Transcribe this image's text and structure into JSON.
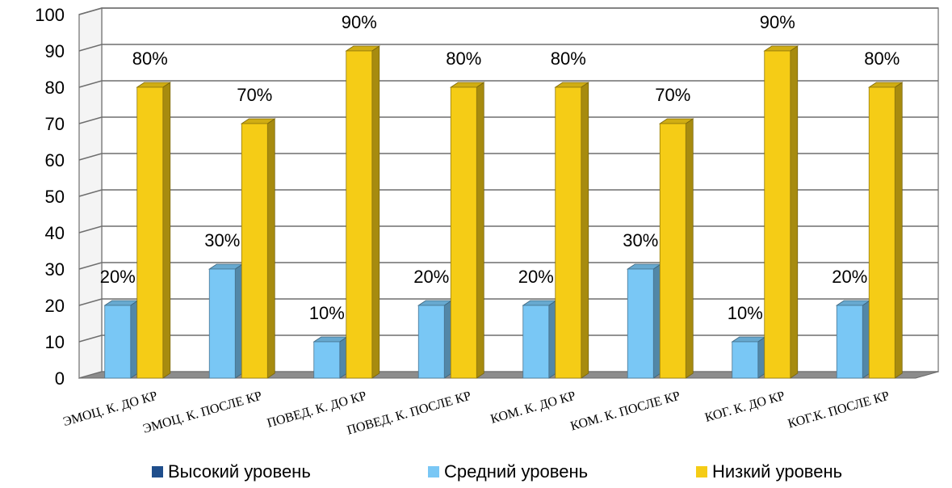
{
  "chart_data": {
    "type": "bar",
    "categories": [
      "ЭМОЦ. К. ДО КР",
      "ЭМОЦ. К. ПОСЛЕ КР",
      "ПОВЕД. К. ДО КР",
      "ПОВЕД. К. ПОСЛЕ КР",
      "КОМ. К. ДО КР",
      "КОМ. К. ПОСЛЕ КР",
      "КОГ. К. ДО КР",
      "КОГ.К. ПОСЛЕ КР"
    ],
    "series": [
      {
        "name": "Высокий уровень",
        "color": "#1f4e8c",
        "values": [
          0,
          0,
          0,
          0,
          0,
          0,
          0,
          0
        ],
        "labels": [
          "",
          "",
          "",
          "",
          "",
          "",
          "",
          ""
        ]
      },
      {
        "name": "Средний уровень",
        "color": "#79c7f5",
        "values": [
          20,
          30,
          10,
          20,
          20,
          30,
          10,
          20
        ],
        "labels": [
          "20%",
          "30%",
          "10%",
          "20%",
          "20%",
          "30%",
          "10%",
          "20%"
        ]
      },
      {
        "name": "Низкий уровень",
        "color": "#f5cc16",
        "values": [
          80,
          70,
          90,
          80,
          80,
          70,
          90,
          80
        ],
        "labels": [
          "80%",
          "70%",
          "90%",
          "80%",
          "80%",
          "70%",
          "90%",
          "80%"
        ]
      }
    ],
    "yticks": [
      "0",
      "10",
      "20",
      "30",
      "40",
      "50",
      "60",
      "70",
      "80",
      "90",
      "100"
    ],
    "ylim": [
      0,
      100
    ],
    "grid": true,
    "legend_position": "bottom",
    "three_d": true
  }
}
